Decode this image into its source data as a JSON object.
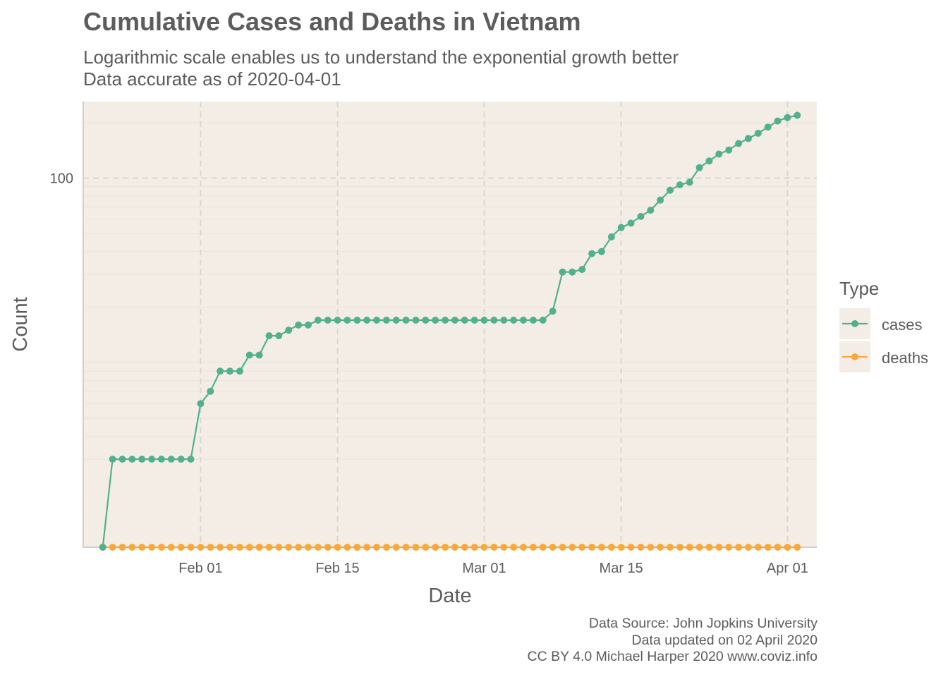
{
  "title": "Cumulative Cases and Deaths in Vietnam",
  "subtitle_lines": [
    "Logarithmic scale enables us to understand the exponential growth better",
    "Data accurate as of 2020-04-01"
  ],
  "caption_lines": [
    "Data Source: John Jopkins University",
    "Data updated on 02 April 2020",
    "CC BY 4.0 Michael Harper 2020 www.coviz.info"
  ],
  "colors": {
    "panel_bg": "#f3ede6",
    "cases": "#52b08d",
    "deaths": "#f9a93b",
    "major_grid": "#d9d6d2",
    "minor_grid": "#e9e4de",
    "axis_line": "#cfcfcf",
    "text": "#5c5c5c"
  },
  "chart_data": {
    "type": "line",
    "scale_y": "log10",
    "xlabel": "Date",
    "ylabel": "Count",
    "x_start": "2020-01-22",
    "x_end": "2020-04-01",
    "x_ticks": [
      {
        "date": "2020-02-01",
        "label": "Feb 01"
      },
      {
        "date": "2020-02-15",
        "label": "Feb 15"
      },
      {
        "date": "2020-03-01",
        "label": "Mar 01"
      },
      {
        "date": "2020-03-15",
        "label": "Mar 15"
      },
      {
        "date": "2020-04-01",
        "label": "Apr 01"
      }
    ],
    "y_ticks": [
      {
        "value": 100,
        "label": "100"
      }
    ],
    "ylim": [
      1,
      260
    ],
    "xlim": [
      "2020-01-20",
      "2020-04-04"
    ],
    "grid": true,
    "legend": {
      "title": "Type",
      "position": "right",
      "entries": [
        "cases",
        "deaths"
      ]
    },
    "series": [
      {
        "name": "cases",
        "color": "#52b08d",
        "values": [
          0,
          2,
          2,
          2,
          2,
          2,
          2,
          2,
          2,
          2,
          5,
          6,
          8,
          8,
          8,
          10,
          10,
          13,
          13,
          14,
          15,
          15,
          16,
          16,
          16,
          16,
          16,
          16,
          16,
          16,
          16,
          16,
          16,
          16,
          16,
          16,
          16,
          16,
          16,
          16,
          16,
          16,
          16,
          16,
          16,
          16,
          18,
          30,
          30,
          31,
          38,
          39,
          47,
          53,
          56,
          61,
          66,
          75,
          85,
          91,
          94,
          113,
          123,
          134,
          141,
          153,
          163,
          174,
          188,
          203,
          212,
          218
        ]
      },
      {
        "name": "deaths",
        "color": "#f9a93b",
        "values": [
          0,
          0,
          0,
          0,
          0,
          0,
          0,
          0,
          0,
          0,
          0,
          0,
          0,
          0,
          0,
          0,
          0,
          0,
          0,
          0,
          0,
          0,
          0,
          0,
          0,
          0,
          0,
          0,
          0,
          0,
          0,
          0,
          0,
          0,
          0,
          0,
          0,
          0,
          0,
          0,
          0,
          0,
          0,
          0,
          0,
          0,
          0,
          0,
          0,
          0,
          0,
          0,
          0,
          0,
          0,
          0,
          0,
          0,
          0,
          0,
          0,
          0,
          0,
          0,
          0,
          0,
          0,
          0,
          0,
          0,
          0,
          0
        ]
      }
    ]
  }
}
